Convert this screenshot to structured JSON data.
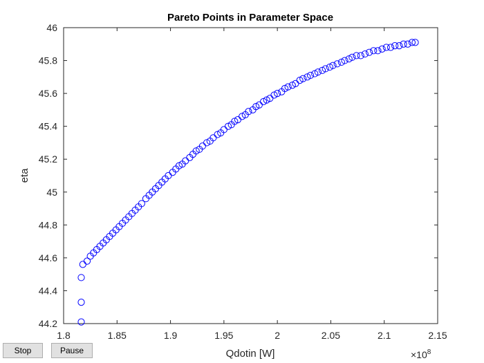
{
  "controls": {
    "stop_label": "Stop",
    "pause_label": "Pause"
  },
  "chart_data": {
    "type": "scatter",
    "title": "Pareto Points in Parameter Space",
    "xlabel": "Qdotin [W]",
    "ylabel": "eta",
    "x_exponent_label": "×10",
    "x_exponent_power": "8",
    "xlim": [
      1.8,
      2.15
    ],
    "ylim": [
      44.2,
      46.0
    ],
    "xticks": [
      1.8,
      1.85,
      1.9,
      1.95,
      2.0,
      2.05,
      2.1,
      2.15
    ],
    "xtick_labels": [
      "1.8",
      "1.85",
      "1.9",
      "1.95",
      "2",
      "2.05",
      "2.1",
      "2.15"
    ],
    "yticks": [
      44.2,
      44.4,
      44.6,
      44.8,
      45.0,
      45.2,
      45.4,
      45.6,
      45.8,
      46.0
    ],
    "ytick_labels": [
      "44.2",
      "44.4",
      "44.6",
      "44.8",
      "45",
      "45.2",
      "45.4",
      "45.6",
      "45.8",
      "46"
    ],
    "marker": "circle-open",
    "marker_color": "#0000ff",
    "grid": false,
    "points": [
      [
        1.8165,
        44.21
      ],
      [
        1.8165,
        44.33
      ],
      [
        1.8165,
        44.48
      ],
      [
        1.818,
        44.56
      ],
      [
        1.822,
        44.58
      ],
      [
        1.825,
        44.61
      ],
      [
        1.828,
        44.63
      ],
      [
        1.831,
        44.65
      ],
      [
        1.834,
        44.67
      ],
      [
        1.837,
        44.69
      ],
      [
        1.84,
        44.71
      ],
      [
        1.843,
        44.73
      ],
      [
        1.846,
        44.75
      ],
      [
        1.849,
        44.77
      ],
      [
        1.852,
        44.79
      ],
      [
        1.855,
        44.81
      ],
      [
        1.858,
        44.83
      ],
      [
        1.861,
        44.85
      ],
      [
        1.864,
        44.87
      ],
      [
        1.867,
        44.89
      ],
      [
        1.87,
        44.91
      ],
      [
        1.873,
        44.93
      ],
      [
        1.877,
        44.96
      ],
      [
        1.88,
        44.98
      ],
      [
        1.883,
        45.0
      ],
      [
        1.886,
        45.02
      ],
      [
        1.889,
        45.04
      ],
      [
        1.892,
        45.06
      ],
      [
        1.895,
        45.08
      ],
      [
        1.898,
        45.1
      ],
      [
        1.902,
        45.12
      ],
      [
        1.905,
        45.14
      ],
      [
        1.908,
        45.16
      ],
      [
        1.911,
        45.17
      ],
      [
        1.914,
        45.19
      ],
      [
        1.918,
        45.21
      ],
      [
        1.921,
        45.23
      ],
      [
        1.924,
        45.25
      ],
      [
        1.927,
        45.26
      ],
      [
        1.93,
        45.28
      ],
      [
        1.934,
        45.3
      ],
      [
        1.937,
        45.31
      ],
      [
        1.94,
        45.33
      ],
      [
        1.944,
        45.35
      ],
      [
        1.947,
        45.36
      ],
      [
        1.95,
        45.38
      ],
      [
        1.954,
        45.4
      ],
      [
        1.957,
        45.41
      ],
      [
        1.96,
        45.43
      ],
      [
        1.963,
        45.44
      ],
      [
        1.967,
        45.46
      ],
      [
        1.97,
        45.47
      ],
      [
        1.973,
        45.49
      ],
      [
        1.977,
        45.5
      ],
      [
        1.98,
        45.52
      ],
      [
        1.983,
        45.53
      ],
      [
        1.987,
        45.55
      ],
      [
        1.99,
        45.56
      ],
      [
        1.993,
        45.57
      ],
      [
        1.997,
        45.59
      ],
      [
        2.0,
        45.6
      ],
      [
        2.004,
        45.61
      ],
      [
        2.007,
        45.63
      ],
      [
        2.01,
        45.64
      ],
      [
        2.014,
        45.65
      ],
      [
        2.017,
        45.66
      ],
      [
        2.021,
        45.68
      ],
      [
        2.024,
        45.69
      ],
      [
        2.028,
        45.7
      ],
      [
        2.031,
        45.71
      ],
      [
        2.035,
        45.72
      ],
      [
        2.038,
        45.73
      ],
      [
        2.042,
        45.74
      ],
      [
        2.045,
        45.75
      ],
      [
        2.049,
        45.76
      ],
      [
        2.052,
        45.77
      ],
      [
        2.056,
        45.78
      ],
      [
        2.06,
        45.79
      ],
      [
        2.063,
        45.8
      ],
      [
        2.067,
        45.81
      ],
      [
        2.07,
        45.82
      ],
      [
        2.074,
        45.83
      ],
      [
        2.078,
        45.83
      ],
      [
        2.082,
        45.84
      ],
      [
        2.086,
        45.85
      ],
      [
        2.09,
        45.86
      ],
      [
        2.094,
        45.86
      ],
      [
        2.098,
        45.87
      ],
      [
        2.102,
        45.88
      ],
      [
        2.106,
        45.88
      ],
      [
        2.11,
        45.89
      ],
      [
        2.114,
        45.89
      ],
      [
        2.118,
        45.9
      ],
      [
        2.122,
        45.9
      ],
      [
        2.126,
        45.91
      ],
      [
        2.129,
        45.91
      ]
    ]
  }
}
